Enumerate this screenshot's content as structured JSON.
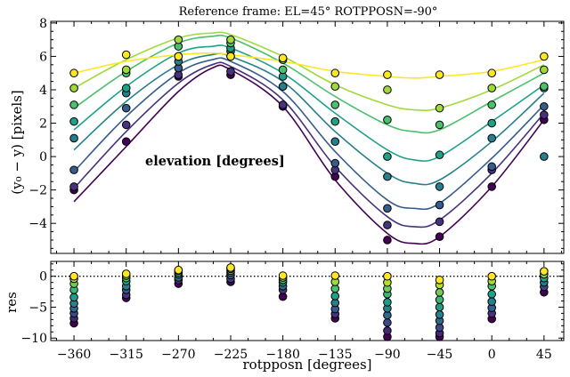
{
  "chart_data": [
    {
      "type": "scatter",
      "title": "Reference frame: EL=45° ROTPPOSN=-90°",
      "ylabel": "(y₀ − y) [pixels]",
      "xlabel": "",
      "annotation": "elevation [degrees]",
      "xlim": [
        -380,
        62
      ],
      "ylim": [
        -5.8,
        8.1
      ],
      "x_ticks": [
        -360,
        -315,
        -270,
        -225,
        -180,
        -135,
        -90,
        -45,
        0,
        45
      ],
      "y_ticks": [
        -4,
        -2,
        0,
        2,
        4,
        6,
        8
      ],
      "y_tick_labels": [
        "−4",
        "−2",
        "0",
        "2",
        "4",
        "6",
        "8"
      ],
      "grid": false,
      "colormap": [
        "#440154",
        "#46327e",
        "#365c8d",
        "#277f8e",
        "#1fa187",
        "#4ac16d",
        "#a0da39",
        "#fde725"
      ],
      "series": [
        {
          "color": "#440154",
          "points": [
            [
              -360,
              -2.0
            ],
            [
              -315,
              0.9
            ],
            [
              -270,
              4.8
            ],
            [
              -225,
              4.9
            ],
            [
              -180,
              3.0
            ],
            [
              -135,
              -1.2
            ],
            [
              -90,
              -5.0
            ],
            [
              -45,
              -4.8
            ],
            [
              0,
              -1.8
            ],
            [
              45,
              2.2
            ]
          ],
          "fit": [
            [
              -360,
              -2.7
            ],
            [
              -315,
              0.6
            ],
            [
              -270,
              3.9
            ],
            [
              -241,
              5.3
            ],
            [
              -225,
              5.2
            ],
            [
              -180,
              3.0
            ],
            [
              -135,
              -1.4
            ],
            [
              -90,
              -4.6
            ],
            [
              -67,
              -5.2
            ],
            [
              -45,
              -4.8
            ],
            [
              0,
              -1.8
            ],
            [
              45,
              2.2
            ]
          ]
        },
        {
          "color": "#46327e",
          "points": [
            [
              -360,
              -1.8
            ],
            [
              -315,
              1.9
            ],
            [
              -270,
              4.9
            ],
            [
              -225,
              5.1
            ],
            [
              -180,
              3.1
            ],
            [
              -135,
              -0.8
            ],
            [
              -90,
              -4.1
            ],
            [
              -45,
              -3.9
            ],
            [
              0,
              -0.8
            ],
            [
              45,
              2.5
            ]
          ],
          "fit": [
            [
              -360,
              -1.9
            ],
            [
              -315,
              1.5
            ],
            [
              -270,
              4.4
            ],
            [
              -241,
              5.5
            ],
            [
              -225,
              5.4
            ],
            [
              -180,
              3.4
            ],
            [
              -135,
              -0.6
            ],
            [
              -90,
              -3.6
            ],
            [
              -67,
              -4.2
            ],
            [
              -45,
              -3.8
            ],
            [
              0,
              -1.0
            ],
            [
              45,
              2.6
            ]
          ]
        },
        {
          "color": "#365c8d",
          "points": [
            [
              -360,
              -0.8
            ],
            [
              -315,
              2.9
            ],
            [
              -270,
              5.3
            ],
            [
              -225,
              6.0
            ],
            [
              -180,
              4.2
            ],
            [
              -135,
              -0.4
            ],
            [
              -90,
              -3.1
            ],
            [
              -45,
              -2.9
            ],
            [
              0,
              -0.6
            ],
            [
              45,
              3.0
            ]
          ],
          "fit": [
            [
              -360,
              -0.9
            ],
            [
              -315,
              2.4
            ],
            [
              -270,
              5.0
            ],
            [
              -241,
              5.8
            ],
            [
              -225,
              5.7
            ],
            [
              -180,
              3.9
            ],
            [
              -135,
              0.3
            ],
            [
              -90,
              -2.6
            ],
            [
              -67,
              -3.1
            ],
            [
              -45,
              -2.8
            ],
            [
              0,
              -0.1
            ],
            [
              45,
              3.1
            ]
          ]
        },
        {
          "color": "#277f8e",
          "points": [
            [
              -360,
              1.1
            ],
            [
              -315,
              3.8
            ],
            [
              -270,
              5.7
            ],
            [
              -225,
              6.3
            ],
            [
              -180,
              4.2
            ],
            [
              -135,
              0.9
            ],
            [
              -90,
              -1.2
            ],
            [
              -45,
              -1.8
            ],
            [
              0,
              1.1
            ],
            [
              45,
              0.0
            ]
          ],
          "fit": [
            [
              -360,
              0.4
            ],
            [
              -315,
              3.3
            ],
            [
              -270,
              5.5
            ],
            [
              -241,
              6.1
            ],
            [
              -225,
              6.0
            ],
            [
              -180,
              4.5
            ],
            [
              -135,
              1.5
            ],
            [
              -90,
              -1.0
            ],
            [
              -67,
              -1.6
            ],
            [
              -45,
              -1.4
            ],
            [
              0,
              0.9
            ],
            [
              45,
              3.8
            ]
          ]
        },
        {
          "color": "#1fa187",
          "points": [
            [
              -360,
              2.1
            ],
            [
              -315,
              4.1
            ],
            [
              -270,
              6.0
            ],
            [
              -225,
              6.5
            ],
            [
              -180,
              4.8
            ],
            [
              -135,
              2.1
            ],
            [
              -90,
              0.0
            ],
            [
              -45,
              0.1
            ],
            [
              0,
              2.0
            ],
            [
              45,
              4.1
            ]
          ],
          "fit": [
            [
              -360,
              1.6
            ],
            [
              -315,
              4.2
            ],
            [
              -270,
              6.2
            ],
            [
              -241,
              6.6
            ],
            [
              -225,
              6.5
            ],
            [
              -180,
              5.0
            ],
            [
              -135,
              2.6
            ],
            [
              -90,
              0.4
            ],
            [
              -67,
              -0.2
            ],
            [
              -45,
              0.0
            ],
            [
              0,
              2.1
            ],
            [
              45,
              4.3
            ]
          ]
        },
        {
          "color": "#4ac16d",
          "points": [
            [
              -360,
              3.1
            ],
            [
              -315,
              5.0
            ],
            [
              -270,
              6.6
            ],
            [
              -225,
              6.8
            ],
            [
              -180,
              5.2
            ],
            [
              -135,
              3.1
            ],
            [
              -90,
              2.2
            ],
            [
              -45,
              1.9
            ],
            [
              0,
              3.1
            ],
            [
              45,
              4.2
            ]
          ],
          "fit": [
            [
              -360,
              2.9
            ],
            [
              -315,
              5.1
            ],
            [
              -270,
              6.8
            ],
            [
              -241,
              7.2
            ],
            [
              -225,
              7.1
            ],
            [
              -180,
              5.6
            ],
            [
              -135,
              3.6
            ],
            [
              -90,
              1.9
            ],
            [
              -67,
              1.5
            ],
            [
              -45,
              1.6
            ],
            [
              0,
              3.3
            ],
            [
              45,
              5.0
            ]
          ]
        },
        {
          "color": "#a0da39",
          "points": [
            [
              -360,
              4.1
            ],
            [
              -315,
              5.2
            ],
            [
              -270,
              7.0
            ],
            [
              -225,
              7.0
            ],
            [
              -180,
              5.8
            ],
            [
              -135,
              4.2
            ],
            [
              -90,
              4.0
            ],
            [
              -45,
              2.9
            ],
            [
              0,
              4.1
            ],
            [
              45,
              5.2
            ]
          ],
          "fit": [
            [
              -360,
              4.1
            ],
            [
              -315,
              5.8
            ],
            [
              -270,
              7.1
            ],
            [
              -241,
              7.4
            ],
            [
              -225,
              7.3
            ],
            [
              -180,
              6.0
            ],
            [
              -135,
              4.3
            ],
            [
              -90,
              3.1
            ],
            [
              -67,
              2.8
            ],
            [
              -45,
              2.9
            ],
            [
              0,
              4.0
            ],
            [
              45,
              5.5
            ]
          ]
        },
        {
          "color": "#fde725",
          "points": [
            [
              -360,
              5.0
            ],
            [
              -315,
              6.1
            ],
            [
              -270,
              6.0
            ],
            [
              -225,
              6.0
            ],
            [
              -180,
              5.9
            ],
            [
              -135,
              5.0
            ],
            [
              -90,
              4.9
            ],
            [
              -45,
              4.9
            ],
            [
              0,
              5.0
            ],
            [
              45,
              6.0
            ]
          ],
          "fit": [
            [
              -360,
              5.0
            ],
            [
              -315,
              5.7
            ],
            [
              -270,
              6.1
            ],
            [
              -241,
              6.2
            ],
            [
              -225,
              6.1
            ],
            [
              -180,
              5.7
            ],
            [
              -135,
              5.1
            ],
            [
              -90,
              4.8
            ],
            [
              -67,
              4.7
            ],
            [
              -45,
              4.8
            ],
            [
              0,
              5.1
            ],
            [
              45,
              5.8
            ]
          ]
        }
      ]
    },
    {
      "type": "scatter",
      "title": "",
      "ylabel": "res",
      "xlabel": "rotpposn [degrees]",
      "xlim": [
        -380,
        62
      ],
      "ylim": [
        -10.4,
        2.4
      ],
      "x_ticks": [
        -360,
        -315,
        -270,
        -225,
        -180,
        -135,
        -90,
        -45,
        0,
        45
      ],
      "x_tick_labels": [
        "−360",
        "−315",
        "−270",
        "−225",
        "−180",
        "−135",
        "−90",
        "−45",
        "0",
        "45"
      ],
      "y_ticks": [
        -10,
        -5,
        0
      ],
      "y_tick_labels": [
        "−10",
        "−5",
        "0"
      ],
      "zero_line": 0,
      "grid": false,
      "columns": [
        {
          "x": -360,
          "values": [
            -7.6,
            -6.8,
            -6.0,
            -5.2,
            -4.4,
            -3.4,
            -2.2,
            -1.2,
            -0.4,
            0.0
          ]
        },
        {
          "x": -315,
          "values": [
            -3.5,
            -3.0,
            -2.2,
            -1.6,
            -0.8,
            -0.3,
            0.1,
            0.4
          ]
        },
        {
          "x": -270,
          "values": [
            -1.2,
            -0.6,
            -0.2,
            0.3,
            0.6,
            0.9,
            1.0
          ]
        },
        {
          "x": -225,
          "values": [
            -0.9,
            -0.4,
            0.2,
            0.6,
            0.9,
            1.2,
            1.4
          ]
        },
        {
          "x": -180,
          "values": [
            -3.3,
            -2.2,
            -1.6,
            -1.0,
            -0.6,
            -0.2,
            0.1
          ]
        },
        {
          "x": -135,
          "values": [
            -6.8,
            -6.1,
            -5.3,
            -4.3,
            -3.2,
            -2.0,
            -0.9,
            0.1
          ]
        },
        {
          "x": -90,
          "values": [
            -9.8,
            -8.8,
            -7.5,
            -6.3,
            -5.2,
            -4.2,
            -2.9,
            -2.0,
            -1.0,
            0.0
          ]
        },
        {
          "x": -45,
          "values": [
            -9.8,
            -9.2,
            -8.3,
            -7.2,
            -6.2,
            -5.0,
            -3.8,
            -2.6,
            -1.4,
            -0.6
          ]
        },
        {
          "x": 0,
          "values": [
            -6.9,
            -6.0,
            -5.1,
            -4.1,
            -2.9,
            -1.6,
            -0.8,
            0.0
          ]
        },
        {
          "x": 45,
          "values": [
            -2.6,
            -1.7,
            -1.0,
            -0.3,
            0.3,
            0.8
          ]
        }
      ]
    }
  ]
}
